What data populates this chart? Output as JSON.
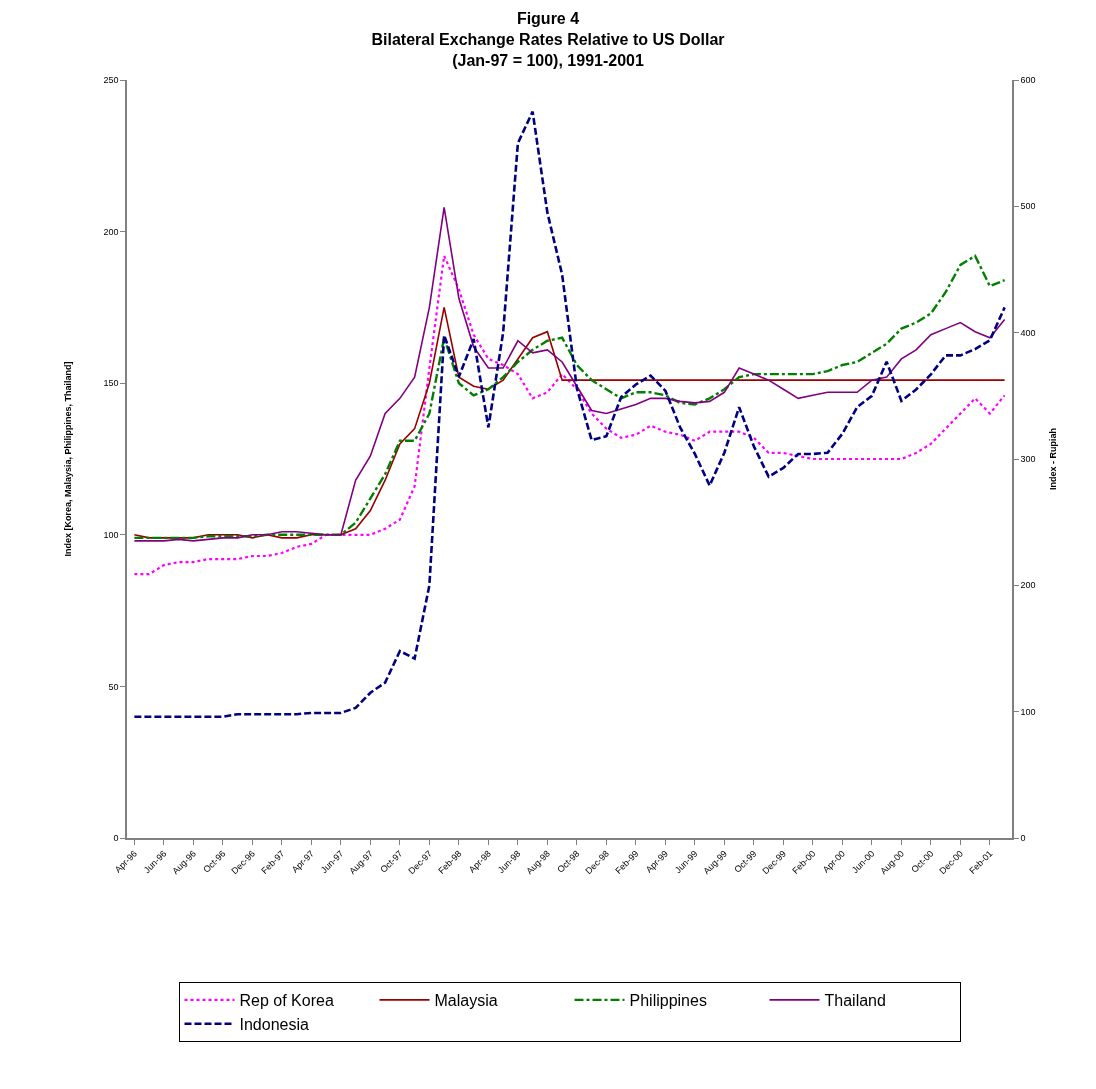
{
  "chart_data": {
    "type": "line",
    "title": "Figure 4\nBilateral Exchange Rates Relative to US Dollar\n(Jan-97 = 100), 1991-2001",
    "ylabel": "Index [Korea, Malaysia, Philippines, Thailand]",
    "y2label": "Index - Rupiah",
    "categories": [
      "Apr-96",
      null,
      "Jun-96",
      null,
      "Aug-96",
      null,
      "Oct-96",
      null,
      "Dec-96",
      null,
      "Feb-97",
      null,
      "Apr-97",
      null,
      "Jun-97",
      null,
      "Aug-97",
      null,
      "Oct-97",
      null,
      "Dec-97",
      null,
      "Feb-98",
      null,
      "Apr-98",
      null,
      "Jun-98",
      null,
      "Aug-98",
      null,
      "Oct-98",
      null,
      "Dec-98",
      null,
      "Feb-99",
      null,
      "Apr-99",
      null,
      "Jun-99",
      null,
      "Aug-99",
      null,
      "Oct-99",
      null,
      "Dec-99",
      null,
      "Feb-00",
      null,
      "Apr-00",
      null,
      "Jun-00",
      null,
      "Aug-00",
      null,
      "Oct-00",
      null,
      "Dec-00",
      null,
      "Feb-01",
      null
    ],
    "series": [
      {
        "name": "Rep of Korea",
        "color": "#ff00ff",
        "line_style": "dotted",
        "values": [
          87,
          87,
          90,
          91,
          91,
          92,
          92,
          92,
          93,
          93,
          94,
          96,
          97,
          100,
          100,
          100,
          100,
          102,
          105,
          116,
          155,
          192,
          181,
          166,
          158,
          156,
          153,
          145,
          147,
          153,
          148,
          140,
          135,
          132,
          133,
          136,
          134,
          133,
          131,
          134,
          134,
          134,
          132,
          127,
          127,
          126,
          125,
          125,
          125,
          125,
          125,
          125,
          125,
          127,
          130,
          135,
          140,
          145,
          140,
          146
        ]
      },
      {
        "name": "Malaysia",
        "color": "#990000",
        "line_style": "solid",
        "values": [
          100,
          99,
          99,
          99,
          99,
          100,
          100,
          100,
          99,
          100,
          99,
          99,
          100,
          100,
          100,
          102,
          108,
          118,
          130,
          135,
          150,
          175,
          152,
          149,
          148,
          151,
          158,
          165,
          167,
          151,
          151,
          151,
          151,
          151,
          151,
          151,
          151,
          151,
          151,
          151,
          151,
          151,
          151,
          151,
          151,
          151,
          151,
          151,
          151,
          151,
          151,
          151,
          151,
          151,
          151,
          151,
          151,
          151,
          151,
          151
        ]
      },
      {
        "name": "Philippines",
        "color": "#008000",
        "line_style": "dashdot",
        "values": [
          99,
          99,
          99,
          99,
          99,
          99.5,
          99.5,
          99.5,
          99.5,
          100,
          100,
          100,
          100,
          100,
          100,
          104,
          112,
          120,
          131,
          131,
          140,
          165,
          150,
          146,
          148,
          152,
          157,
          161,
          164,
          165,
          156,
          151,
          148,
          145,
          147,
          147,
          146,
          143.5,
          143,
          145,
          148,
          152,
          153,
          153,
          153,
          153,
          153,
          154,
          156,
          157,
          160,
          163,
          168,
          170,
          173,
          180,
          189,
          192,
          182,
          184
        ]
      },
      {
        "name": "Thailand",
        "color": "#800080",
        "line_style": "solid",
        "values": [
          98,
          98,
          98,
          98.5,
          98,
          98.5,
          99,
          99,
          100,
          100,
          101,
          101,
          100.5,
          100,
          100,
          118,
          126,
          140,
          145,
          152,
          175,
          208,
          178,
          162,
          155,
          155,
          164,
          160,
          161,
          157,
          149,
          141,
          140,
          141.5,
          143,
          145,
          145,
          144,
          143.5,
          144,
          147,
          155,
          153,
          151,
          148,
          145,
          146,
          147,
          147,
          147,
          151,
          152,
          158,
          161,
          166,
          168,
          170,
          167,
          165,
          171
        ]
      },
      {
        "name": "Indonesia",
        "color": "#000080",
        "line_style": "dashed",
        "axis": "y2",
        "values": [
          96,
          96,
          96,
          96,
          96,
          96,
          96,
          98,
          98,
          98,
          98,
          98,
          99,
          99,
          99,
          103,
          115,
          123,
          148,
          142,
          200,
          398,
          365,
          395,
          325,
          400,
          550,
          575,
          495,
          446,
          356,
          315,
          318,
          349,
          359,
          366,
          354,
          325,
          304,
          279,
          305,
          341,
          310,
          286,
          293,
          304,
          304,
          305,
          320,
          341,
          350,
          377,
          346,
          355,
          367,
          382,
          382,
          387,
          394,
          420
        ]
      }
    ],
    "ylim": [
      0,
      250
    ],
    "yticks": [
      0,
      50,
      100,
      150,
      200,
      250
    ],
    "y2lim": [
      0,
      600
    ],
    "y2ticks": [
      0,
      100,
      200,
      300,
      400,
      500,
      600
    ],
    "legend": "bottom"
  }
}
